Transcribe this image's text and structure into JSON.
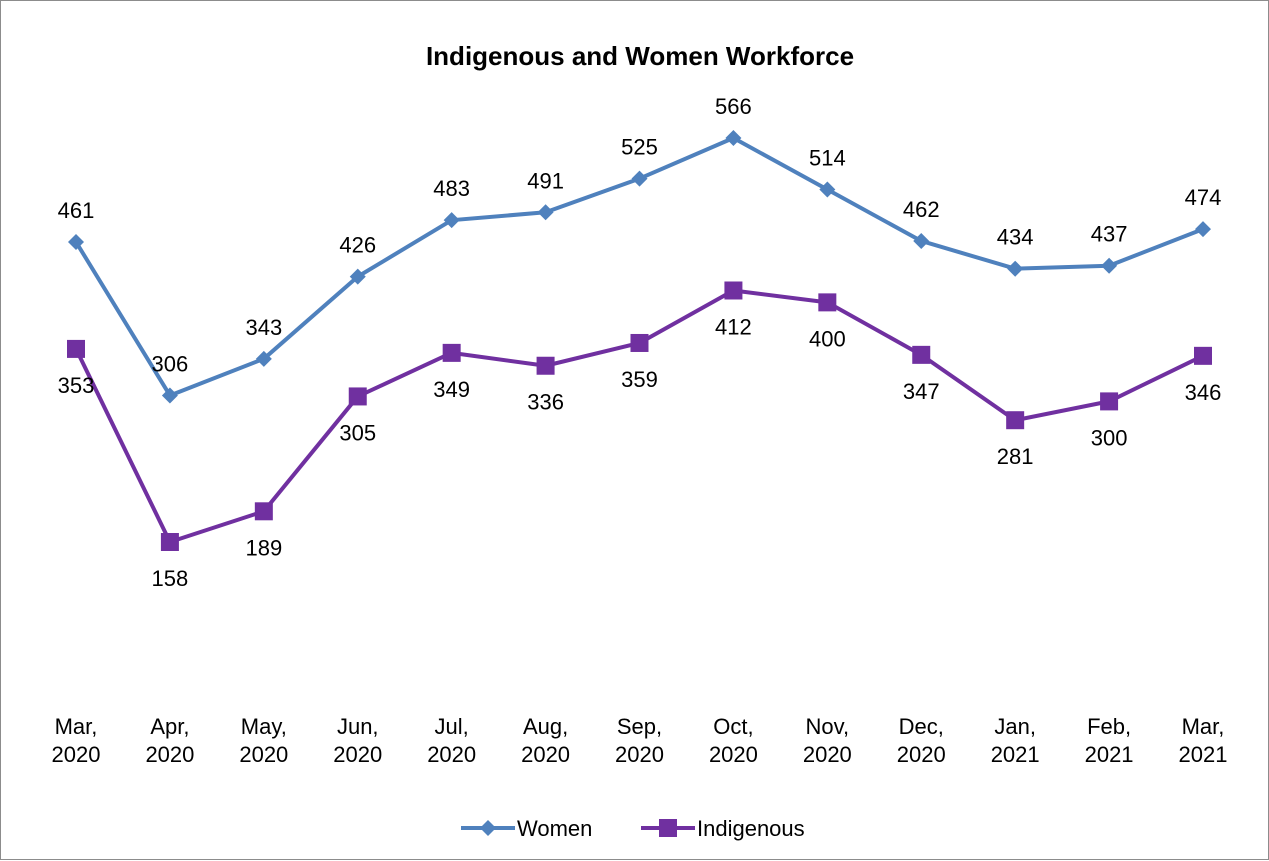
{
  "chart_data": {
    "type": "line",
    "title": "Indigenous and Women Workforce",
    "xlabel": "",
    "ylabel": "",
    "categories": [
      [
        "Mar,",
        "2020"
      ],
      [
        "Apr,",
        "2020"
      ],
      [
        "May,",
        "2020"
      ],
      [
        "Jun,",
        "2020"
      ],
      [
        "Jul,",
        "2020"
      ],
      [
        "Aug,",
        "2020"
      ],
      [
        "Sep,",
        "2020"
      ],
      [
        "Oct,",
        "2020"
      ],
      [
        "Nov,",
        "2020"
      ],
      [
        "Dec,",
        "2020"
      ],
      [
        "Jan,",
        "2021"
      ],
      [
        "Feb,",
        "2021"
      ],
      [
        "Mar,",
        "2021"
      ]
    ],
    "series": [
      {
        "name": "Women",
        "color": "#4f81bd",
        "marker": "diamond",
        "label_position": "above",
        "values": [
          461,
          306,
          343,
          426,
          483,
          491,
          525,
          566,
          514,
          462,
          434,
          437,
          474
        ]
      },
      {
        "name": "Indigenous",
        "color": "#7030a0",
        "marker": "square",
        "label_position": "below",
        "values": [
          353,
          158,
          189,
          305,
          349,
          336,
          359,
          412,
          400,
          347,
          281,
          300,
          346
        ]
      }
    ],
    "ylim": [
      0,
      600
    ],
    "grid": false,
    "y_axis_visible": false,
    "legend_position": "bottom"
  }
}
